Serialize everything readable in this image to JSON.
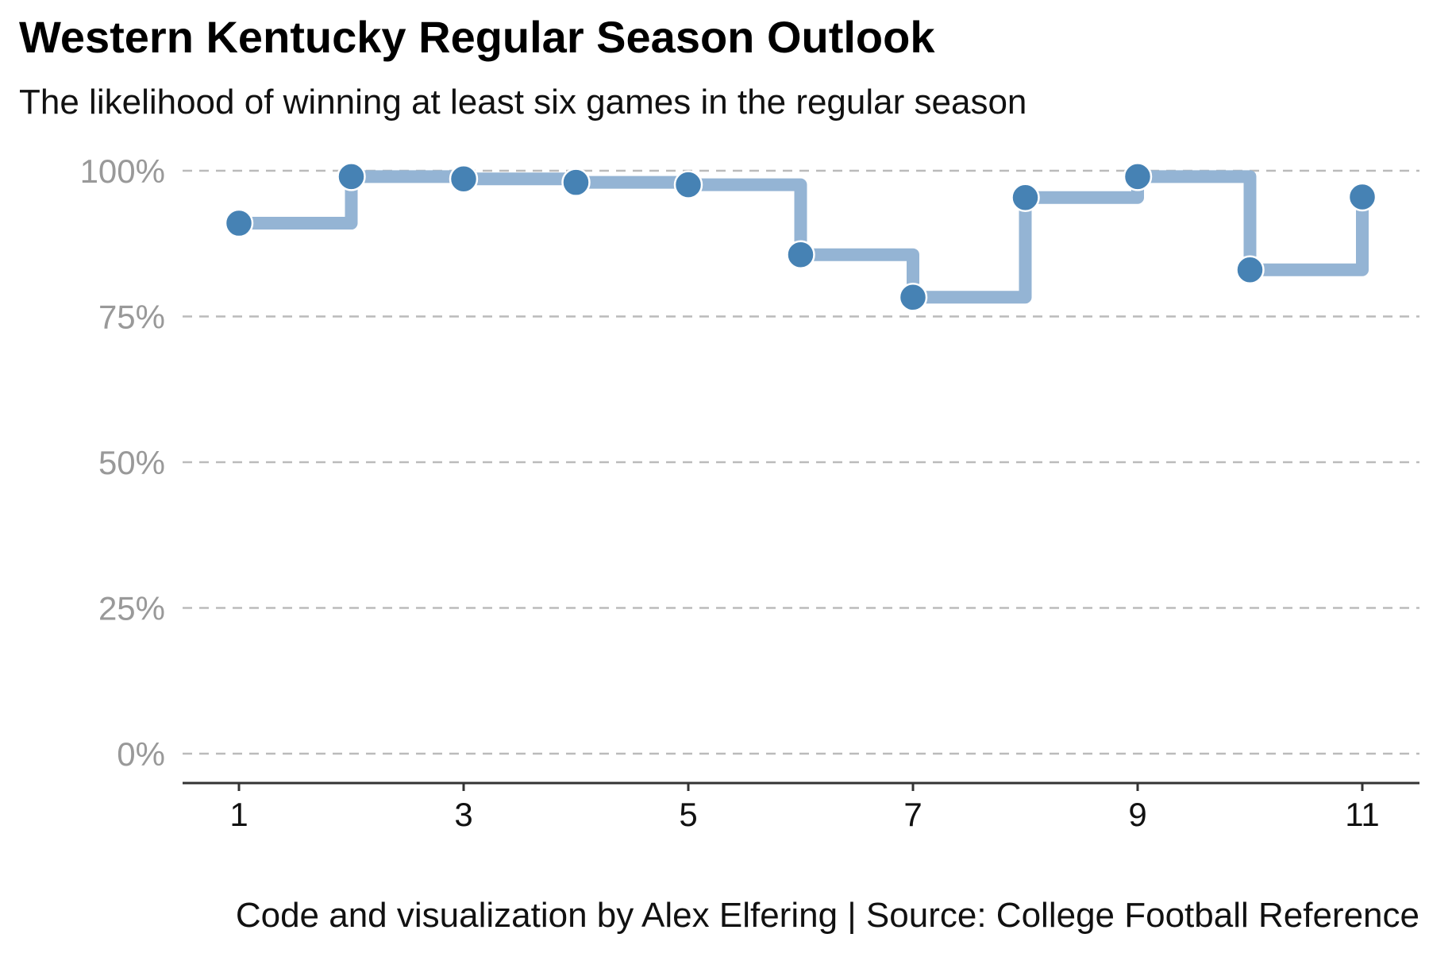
{
  "title": "Western Kentucky Regular Season Outlook",
  "subtitle": "The likelihood of winning at least six games in the regular season",
  "caption": "Code and visualization by Alex Elfering | Source: College Football Reference",
  "colors": {
    "step_line": "#94b4d4",
    "point": "#4682b4",
    "grid": "#bbbbbb",
    "axis": "#333333"
  },
  "chart_data": {
    "type": "line",
    "style": "step",
    "title": "Western Kentucky Regular Season Outlook",
    "subtitle": "The likelihood of winning at least six games in the regular season",
    "xlabel": "",
    "ylabel": "",
    "x": [
      1,
      2,
      3,
      4,
      5,
      6,
      7,
      8,
      9,
      10,
      11
    ],
    "y": [
      91,
      99,
      98.6,
      98,
      97.6,
      85.6,
      78.3,
      95.4,
      99,
      83,
      95.5
    ],
    "xlim": [
      0.5,
      11.5
    ],
    "ylim": [
      -5,
      100
    ],
    "x_ticks": [
      1,
      3,
      5,
      7,
      9,
      11
    ],
    "x_tick_labels": [
      "1",
      "3",
      "5",
      "7",
      "9",
      "11"
    ],
    "y_ticks": [
      0,
      25,
      50,
      75,
      100
    ],
    "y_tick_labels": [
      "0%",
      "25%",
      "50%",
      "75%",
      "100%"
    ],
    "grid": "horizontal dashed",
    "legend": "none"
  }
}
